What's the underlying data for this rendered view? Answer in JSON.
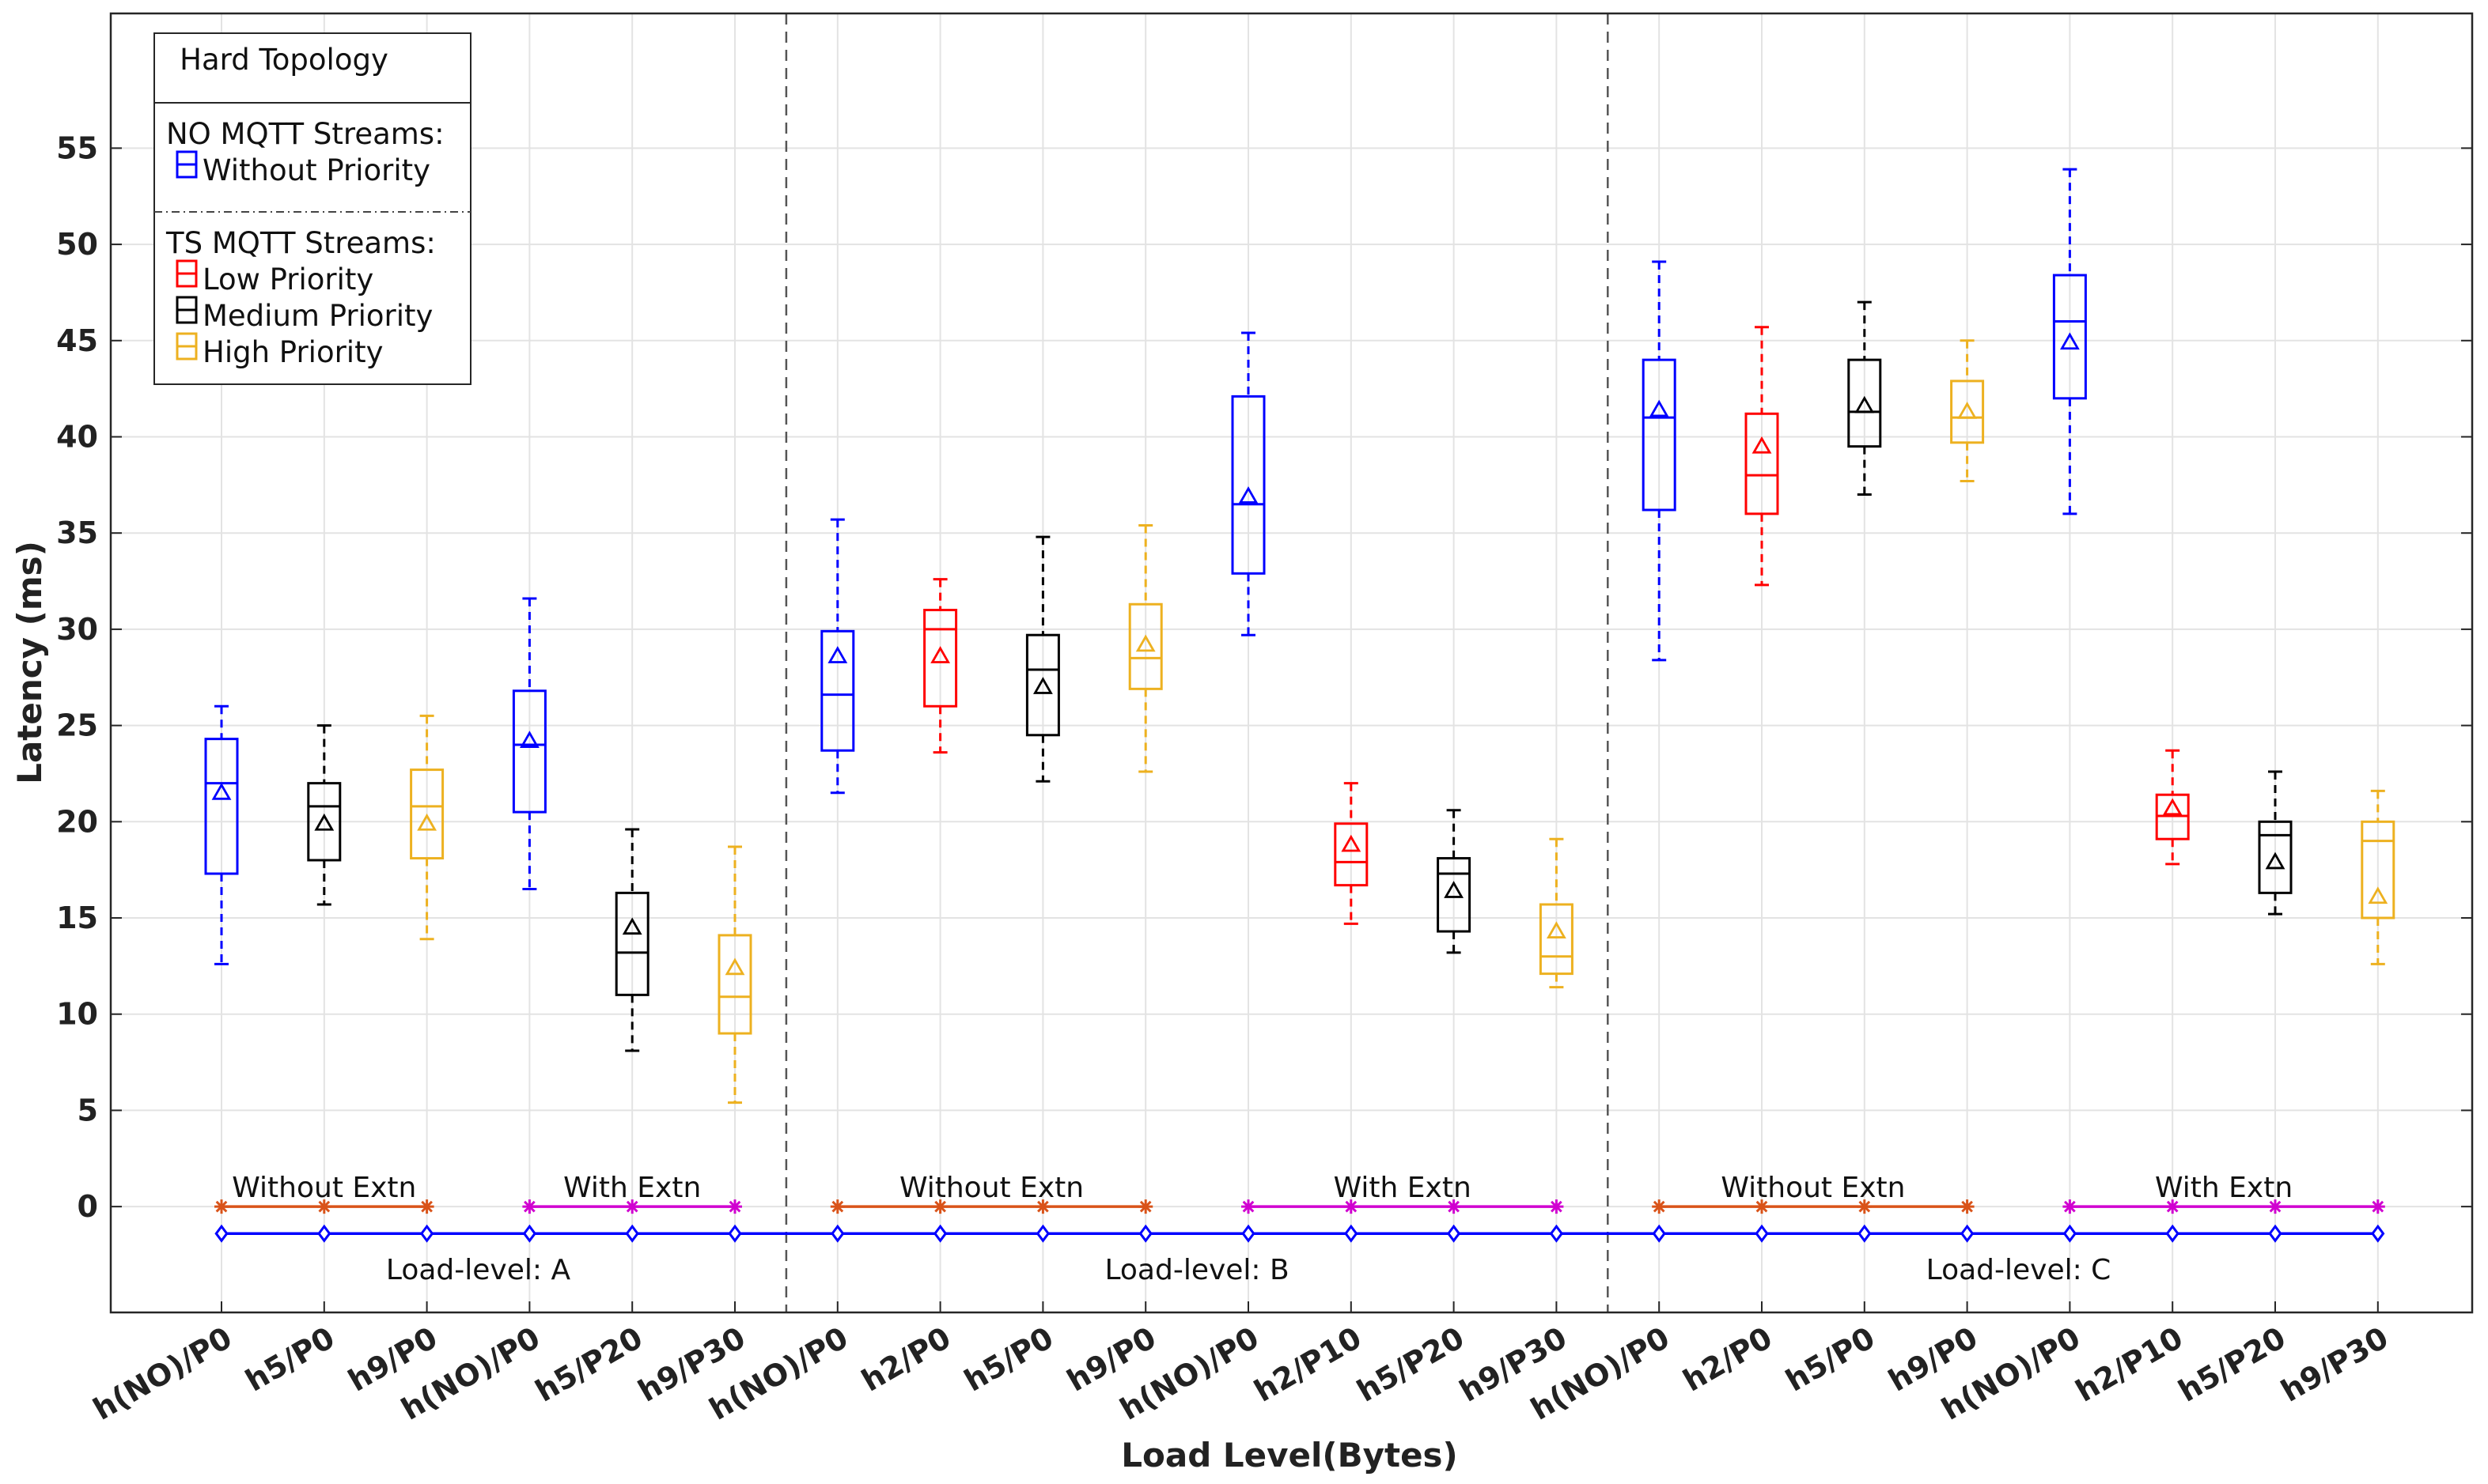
{
  "chart_data": {
    "type": "box",
    "title": "",
    "xlabel": "Load Level(Bytes)",
    "ylabel": "Latency (ms)",
    "ylim": [
      -5.5,
      62
    ],
    "yticks": [
      0,
      5,
      10,
      15,
      20,
      25,
      30,
      35,
      40,
      45,
      50,
      55
    ],
    "grid": true,
    "legend": {
      "position": "top-left",
      "title": "Hard Topology",
      "groups": [
        {
          "heading": "NO MQTT Streams:",
          "items": [
            {
              "name": "Without Priority",
              "color": "#0000ff"
            }
          ]
        },
        {
          "heading": "TS  MQTT Streams:",
          "items": [
            {
              "name": "Low Priority",
              "color": "#ff0000"
            },
            {
              "name": "Medium Priority",
              "color": "#000000"
            },
            {
              "name": "High Priority",
              "color": "#edb120"
            }
          ]
        }
      ]
    },
    "categories": [
      "h(NO)/P0",
      "h5/P0",
      "h9/P0",
      "h(NO)/P0",
      "h5/P20",
      "h9/P30",
      "h(NO)/P0",
      "h2/P0",
      "h5/P0",
      "h9/P0",
      "h(NO)/P0",
      "h2/P10",
      "h5/P20",
      "h9/P30",
      "h(NO)/P0",
      "h2/P0",
      "h5/P0",
      "h9/P0",
      "h(NO)/P0",
      "h2/P10",
      "h5/P20",
      "h9/P30"
    ],
    "boxes": [
      {
        "category_index": 0,
        "color": "#0000ff",
        "min": 12.6,
        "q1": 17.3,
        "median": 22.0,
        "q3": 24.3,
        "max": 26.0,
        "mean": 21.5
      },
      {
        "category_index": 1,
        "color": "#000000",
        "min": 15.7,
        "q1": 18.0,
        "median": 20.8,
        "q3": 22.0,
        "max": 25.0,
        "mean": 19.9
      },
      {
        "category_index": 2,
        "color": "#edb120",
        "min": 13.9,
        "q1": 18.1,
        "median": 20.8,
        "q3": 22.7,
        "max": 25.5,
        "mean": 19.9
      },
      {
        "category_index": 3,
        "color": "#0000ff",
        "min": 16.5,
        "q1": 20.5,
        "median": 24.0,
        "q3": 26.8,
        "max": 31.6,
        "mean": 24.2
      },
      {
        "category_index": 4,
        "color": "#000000",
        "min": 8.1,
        "q1": 11.0,
        "median": 13.2,
        "q3": 16.3,
        "max": 19.6,
        "mean": 14.5
      },
      {
        "category_index": 5,
        "color": "#edb120",
        "min": 5.4,
        "q1": 9.0,
        "median": 10.9,
        "q3": 14.1,
        "max": 18.7,
        "mean": 12.4
      },
      {
        "category_index": 6,
        "color": "#0000ff",
        "min": 21.5,
        "q1": 23.7,
        "median": 26.6,
        "q3": 29.9,
        "max": 35.7,
        "mean": 28.6
      },
      {
        "category_index": 7,
        "color": "#ff0000",
        "min": 23.6,
        "q1": 26.0,
        "median": 30.0,
        "q3": 31.0,
        "max": 32.6,
        "mean": 28.6
      },
      {
        "category_index": 8,
        "color": "#000000",
        "min": 22.1,
        "q1": 24.5,
        "median": 27.9,
        "q3": 29.7,
        "max": 34.8,
        "mean": 27.0
      },
      {
        "category_index": 9,
        "color": "#edb120",
        "min": 22.6,
        "q1": 26.9,
        "median": 28.5,
        "q3": 31.3,
        "max": 35.4,
        "mean": 29.2
      },
      {
        "category_index": 10,
        "color": "#0000ff",
        "min": 29.7,
        "q1": 32.9,
        "median": 36.5,
        "q3": 42.1,
        "max": 45.4,
        "mean": 36.9
      },
      {
        "category_index": 11,
        "color": "#ff0000",
        "min": 14.7,
        "q1": 16.7,
        "median": 17.9,
        "q3": 19.9,
        "max": 22.0,
        "mean": 18.8
      },
      {
        "category_index": 12,
        "color": "#000000",
        "min": 13.2,
        "q1": 14.3,
        "median": 17.3,
        "q3": 18.1,
        "max": 20.6,
        "mean": 16.4
      },
      {
        "category_index": 13,
        "color": "#edb120",
        "min": 11.4,
        "q1": 12.1,
        "median": 13.0,
        "q3": 15.7,
        "max": 19.1,
        "mean": 14.3
      },
      {
        "category_index": 14,
        "color": "#0000ff",
        "min": 28.4,
        "q1": 36.2,
        "median": 41.0,
        "q3": 44.0,
        "max": 49.1,
        "mean": 41.4
      },
      {
        "category_index": 15,
        "color": "#ff0000",
        "min": 32.3,
        "q1": 36.0,
        "median": 38.0,
        "q3": 41.2,
        "max": 45.7,
        "mean": 39.5
      },
      {
        "category_index": 16,
        "color": "#000000",
        "min": 37.0,
        "q1": 39.5,
        "median": 41.3,
        "q3": 44.0,
        "max": 47.0,
        "mean": 41.6
      },
      {
        "category_index": 17,
        "color": "#edb120",
        "min": 37.7,
        "q1": 39.7,
        "median": 41.0,
        "q3": 42.9,
        "max": 45.0,
        "mean": 41.3
      },
      {
        "category_index": 18,
        "color": "#0000ff",
        "min": 36.0,
        "q1": 42.0,
        "median": 46.0,
        "q3": 48.4,
        "max": 53.9,
        "mean": 44.9
      },
      {
        "category_index": 19,
        "color": "#ff0000",
        "min": 17.8,
        "q1": 19.1,
        "median": 20.3,
        "q3": 21.4,
        "max": 23.7,
        "mean": 20.7
      },
      {
        "category_index": 20,
        "color": "#000000",
        "min": 15.2,
        "q1": 16.3,
        "median": 19.3,
        "q3": 20.0,
        "max": 22.6,
        "mean": 17.9
      },
      {
        "category_index": 21,
        "color": "#edb120",
        "min": 12.6,
        "q1": 15.0,
        "median": 19.0,
        "q3": 20.0,
        "max": 21.6,
        "mean": 16.1
      }
    ],
    "marker_lines": [
      {
        "name": "Without Extn",
        "color": "#d95319",
        "marker": "star",
        "y": 0,
        "from": 0,
        "to": 2
      },
      {
        "name": "With Extn",
        "color": "#d000d0",
        "marker": "star",
        "y": 0,
        "from": 3,
        "to": 5
      },
      {
        "name": "Without Extn",
        "color": "#d95319",
        "marker": "star",
        "y": 0,
        "from": 6,
        "to": 9
      },
      {
        "name": "With Extn",
        "color": "#d000d0",
        "marker": "star",
        "y": 0,
        "from": 10,
        "to": 13
      },
      {
        "name": "Without Extn",
        "color": "#d95319",
        "marker": "star",
        "y": 0,
        "from": 14,
        "to": 17
      },
      {
        "name": "With Extn",
        "color": "#d000d0",
        "marker": "star",
        "y": 0,
        "from": 18,
        "to": 21
      },
      {
        "name": "Load-level",
        "color": "#0000ff",
        "marker": "diamond",
        "y": -1.4,
        "from": 0,
        "to": 21
      }
    ],
    "separators_after": [
      5,
      13
    ],
    "load_levels": [
      {
        "label": "Load-level: A",
        "from": 0,
        "to": 5
      },
      {
        "label": "Load-level: B",
        "from": 6,
        "to": 13
      },
      {
        "label": "Load-level: C",
        "from": 14,
        "to": 21
      }
    ],
    "section_labels": [
      {
        "text": "Without Extn",
        "from": 0,
        "to": 2
      },
      {
        "text": "With Extn",
        "from": 3,
        "to": 5
      },
      {
        "text": "Without Extn",
        "from": 6,
        "to": 9
      },
      {
        "text": "With Extn",
        "from": 10,
        "to": 13
      },
      {
        "text": "Without Extn",
        "from": 14,
        "to": 17
      },
      {
        "text": "With Extn",
        "from": 18,
        "to": 21
      }
    ]
  }
}
